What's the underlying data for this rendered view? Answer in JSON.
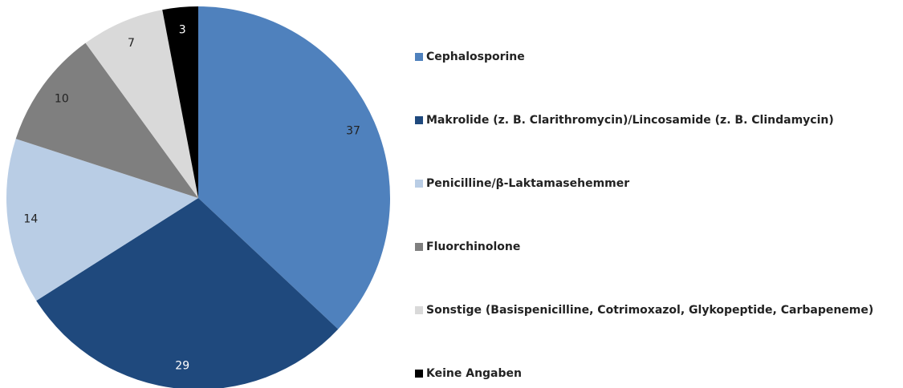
{
  "chart_data": {
    "type": "pie",
    "categories": [
      "Cephalosporine",
      "Makrolide (z. B. Clarithromycin)/Lincosamide (z. B. Clindamycin)",
      "Penicilline/β-Laktamasehemmer",
      "Fluorchinolone",
      "Sonstige (Basispenicilline, Cotrimoxazol, Glykopeptide, Carbapeneme)",
      "Keine Angaben"
    ],
    "values": [
      37,
      29,
      14,
      10,
      7,
      3
    ],
    "colors": [
      "#4f81bd",
      "#1f497d",
      "#b9cde5",
      "#7f7f7f",
      "#d9d9d9",
      "#000000"
    ],
    "legend": "right"
  }
}
